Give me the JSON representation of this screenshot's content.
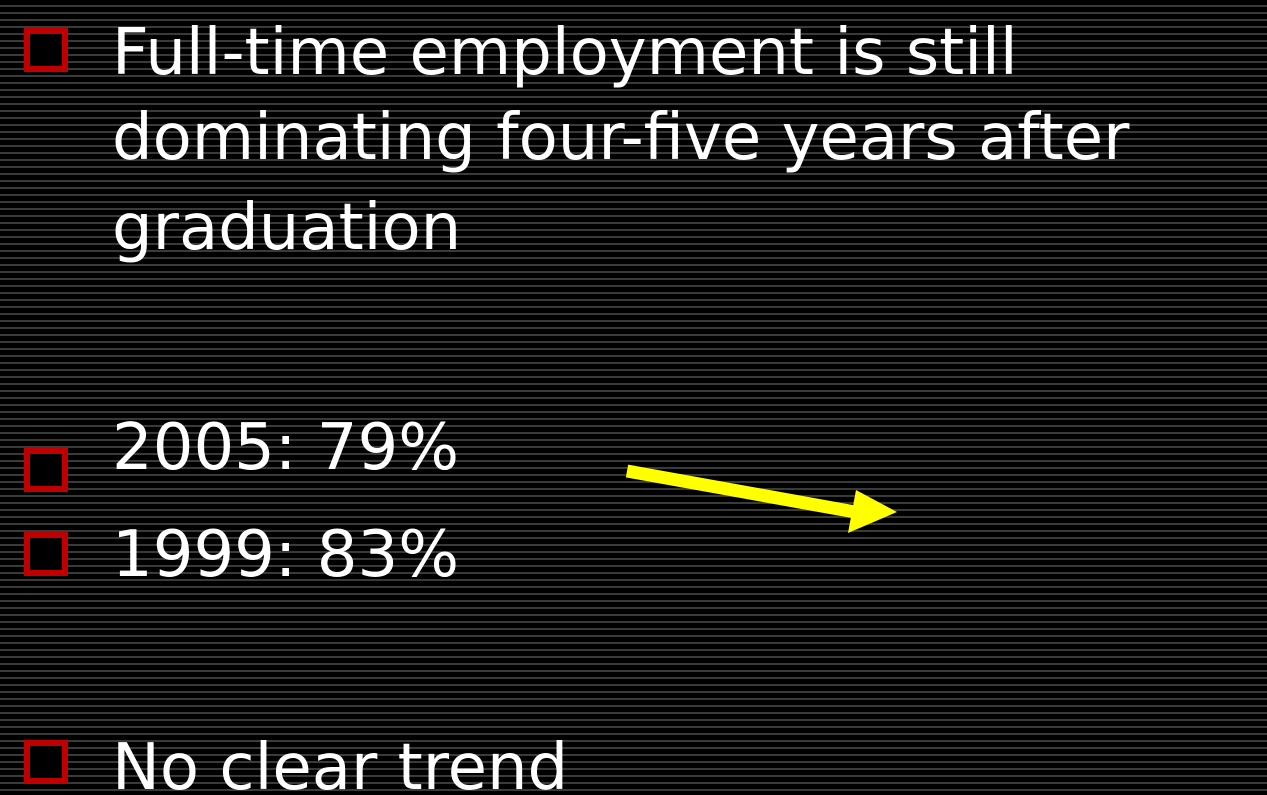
{
  "bullets": [
    [
      "Full-time employment is still",
      "dominating four-five years after",
      "graduation"
    ],
    [
      "2005: 79%"
    ],
    [
      "1999: 83%"
    ],
    [
      "No clear trend"
    ]
  ]
}
